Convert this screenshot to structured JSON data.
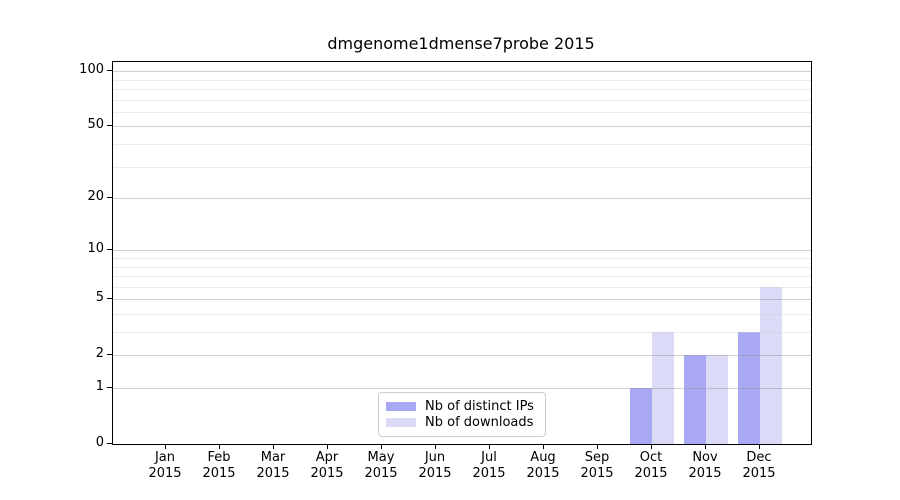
{
  "figure": {
    "background": "#ffffff"
  },
  "chart_data": {
    "type": "bar",
    "title": "dmgenome1dmense7probe 2015",
    "categories": [
      "Jan",
      "Feb",
      "Mar",
      "Apr",
      "May",
      "Jun",
      "Jul",
      "Aug",
      "Sep",
      "Oct",
      "Nov",
      "Dec"
    ],
    "xtick_year": "2015",
    "series": [
      {
        "name": "Nb of distinct IPs",
        "color": "#a8a8f4",
        "values": [
          0,
          0,
          0,
          0,
          0,
          0,
          0,
          0,
          0,
          1,
          2,
          3
        ]
      },
      {
        "name": "Nb of downloads",
        "color": "#dbdbf8",
        "values": [
          0,
          0,
          0,
          0,
          0,
          0,
          0,
          0,
          0,
          3,
          2,
          6
        ]
      }
    ],
    "xlabel": "",
    "ylabel": "",
    "yscale": "log1p",
    "ylim": [
      0,
      112
    ],
    "yticks": [
      0,
      1,
      2,
      5,
      10,
      20,
      50,
      100
    ],
    "yticks_minor": [
      3,
      4,
      6,
      7,
      8,
      9,
      30,
      40,
      60,
      70,
      80,
      90
    ],
    "grid": "on",
    "grid_major_color": "rgba(150,150,150,0.45)",
    "grid_minor_color": "rgba(205,205,205,0.4)",
    "legend_position": "lower-center",
    "axis_color": "#000000"
  }
}
